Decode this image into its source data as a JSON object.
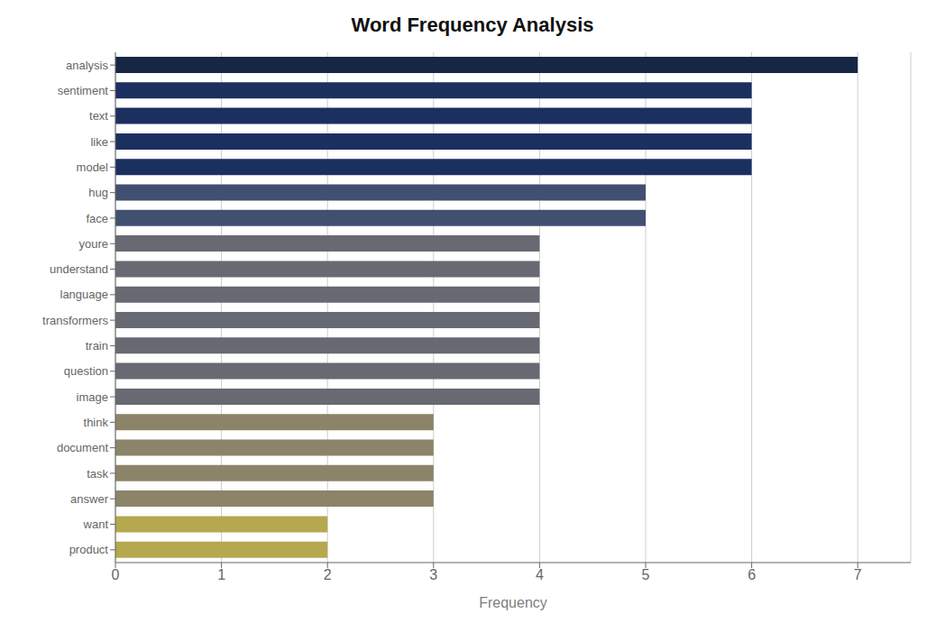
{
  "chart_data": {
    "type": "bar",
    "orientation": "horizontal",
    "title": "Word Frequency Analysis",
    "categories": [
      "analysis",
      "sentiment",
      "text",
      "like",
      "model",
      "hug",
      "face",
      "youre",
      "understand",
      "language",
      "transformers",
      "train",
      "question",
      "image",
      "think",
      "document",
      "task",
      "answer",
      "want",
      "product"
    ],
    "values": [
      7,
      6,
      6,
      6,
      6,
      5,
      5,
      4,
      4,
      4,
      4,
      4,
      4,
      4,
      3,
      3,
      3,
      3,
      2,
      2
    ],
    "colors": [
      "#152744",
      "#1c3060",
      "#1c3060",
      "#1c3060",
      "#1c3060",
      "#415070",
      "#415070",
      "#676a72",
      "#676a72",
      "#676a72",
      "#676a72",
      "#676a72",
      "#676a72",
      "#676a72",
      "#8b8468",
      "#8b8468",
      "#8b8468",
      "#8b8468",
      "#b5a84e",
      "#b5a84e"
    ],
    "xlabel": "Frequency",
    "xlim": [
      0,
      7.5
    ],
    "xticks": [
      0,
      1,
      2,
      3,
      4,
      5,
      6,
      7
    ],
    "grid": true
  }
}
